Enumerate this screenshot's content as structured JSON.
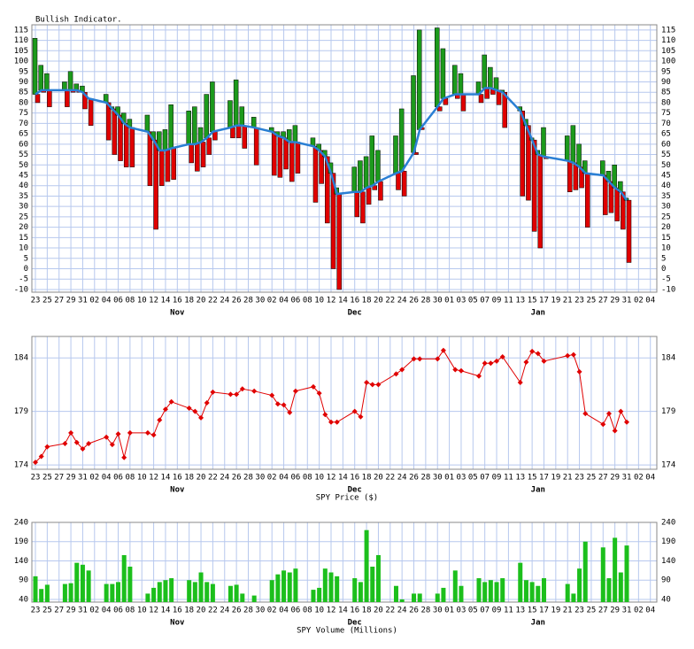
{
  "chart_data": [
    {
      "type": "indicator",
      "title": "Bullish Indicator.",
      "x": [
        "Oct 23",
        "Oct 24",
        "Oct 25",
        "Oct 28",
        "Oct 29",
        "Oct 30",
        "Oct 31",
        "Nov 1",
        "Nov 4",
        "Nov 5",
        "Nov 6",
        "Nov 7",
        "Nov 8",
        "Nov 11",
        "Nov 12",
        "Nov 13",
        "Nov 14",
        "Nov 15",
        "Nov 18",
        "Nov 19",
        "Nov 20",
        "Nov 21",
        "Nov 22",
        "Nov 25",
        "Nov 26",
        "Nov 27",
        "Nov 29",
        "Dec 2",
        "Dec 3",
        "Dec 4",
        "Dec 5",
        "Dec 6",
        "Dec 9",
        "Dec 10",
        "Dec 11",
        "Dec 12",
        "Dec 13",
        "Dec 16",
        "Dec 17",
        "Dec 18",
        "Dec 19",
        "Dec 20",
        "Dec 23",
        "Dec 24",
        "Dec 26",
        "Dec 27",
        "Dec 30",
        "Dec 31",
        "Jan 2",
        "Jan 3",
        "Jan 6",
        "Jan 7",
        "Jan 8",
        "Jan 9",
        "Jan 10",
        "Jan 13",
        "Jan 14",
        "Jan 15",
        "Jan 16",
        "Jan 17",
        "Jan 21",
        "Jan 22",
        "Jan 23",
        "Jan 24",
        "Jan 27",
        "Jan 28",
        "Jan 29",
        "Jan 30",
        "Jan 31"
      ],
      "xticks": [
        {
          "value": "Oct 23",
          "label": "23"
        },
        {
          "value": "Oct 25",
          "label": "25"
        },
        {
          "value": "Oct 27",
          "label": "27"
        },
        {
          "value": "Oct 29",
          "label": "29"
        },
        {
          "value": "Oct 31",
          "label": "31"
        },
        {
          "value": "Nov 2",
          "label": "02"
        },
        {
          "value": "Nov 4",
          "label": "04"
        },
        {
          "value": "Nov 6",
          "label": "06"
        },
        {
          "value": "Nov 8",
          "label": "08"
        },
        {
          "value": "Nov 10",
          "label": "10"
        },
        {
          "value": "Nov 12",
          "label": "12"
        },
        {
          "value": "Nov 14",
          "label": "14"
        },
        {
          "value": "Nov 16",
          "label": "16"
        },
        {
          "value": "Nov 18",
          "label": "18"
        },
        {
          "value": "Nov 20",
          "label": "20"
        },
        {
          "value": "Nov 22",
          "label": "22"
        },
        {
          "value": "Nov 24",
          "label": "24"
        },
        {
          "value": "Nov 26",
          "label": "26"
        },
        {
          "value": "Nov 28",
          "label": "28"
        },
        {
          "value": "Nov 30",
          "label": "30"
        },
        {
          "value": "Dec 2",
          "label": "02"
        },
        {
          "value": "Dec 4",
          "label": "04"
        },
        {
          "value": "Dec 6",
          "label": "06"
        },
        {
          "value": "Dec 8",
          "label": "08"
        },
        {
          "value": "Dec 10",
          "label": "10"
        },
        {
          "value": "Dec 12",
          "label": "12"
        },
        {
          "value": "Dec 14",
          "label": "14"
        },
        {
          "value": "Dec 16",
          "label": "16"
        },
        {
          "value": "Dec 18",
          "label": "18"
        },
        {
          "value": "Dec 20",
          "label": "20"
        },
        {
          "value": "Dec 22",
          "label": "22"
        },
        {
          "value": "Dec 24",
          "label": "24"
        },
        {
          "value": "Dec 26",
          "label": "26"
        },
        {
          "value": "Dec 28",
          "label": "28"
        },
        {
          "value": "Dec 30",
          "label": "30"
        },
        {
          "value": "Jan 1",
          "label": "01"
        },
        {
          "value": "Jan 3",
          "label": "03"
        },
        {
          "value": "Jan 5",
          "label": "05"
        },
        {
          "value": "Jan 7",
          "label": "07"
        },
        {
          "value": "Jan 9",
          "label": "09"
        },
        {
          "value": "Jan 11",
          "label": "11"
        },
        {
          "value": "Jan 13",
          "label": "13"
        },
        {
          "value": "Jan 15",
          "label": "15"
        },
        {
          "value": "Jan 17",
          "label": "17"
        },
        {
          "value": "Jan 19",
          "label": "19"
        },
        {
          "value": "Jan 21",
          "label": "21"
        },
        {
          "value": "Jan 23",
          "label": "23"
        },
        {
          "value": "Jan 25",
          "label": "25"
        },
        {
          "value": "Jan 27",
          "label": "27"
        },
        {
          "value": "Jan 29",
          "label": "29"
        },
        {
          "value": "Jan 31",
          "label": "31"
        },
        {
          "value": "Feb 2",
          "label": "02"
        },
        {
          "value": "Feb 4",
          "label": "04"
        }
      ],
      "months": [
        "Nov",
        "Dec",
        "Jan"
      ],
      "high": [
        111,
        98,
        94,
        90,
        95,
        89,
        88,
        82,
        84,
        78,
        78,
        75,
        72,
        74,
        66,
        66,
        67,
        79,
        76,
        78,
        68,
        84,
        90,
        81,
        91,
        78,
        73,
        68,
        66,
        66,
        67,
        69,
        63,
        60,
        57,
        51,
        39,
        49,
        52,
        54,
        64,
        57,
        64,
        77,
        93,
        115,
        116,
        106,
        98,
        94,
        90,
        103,
        97,
        92,
        86,
        78,
        72,
        63,
        57,
        68,
        64,
        69,
        60,
        52,
        52,
        47,
        50,
        42,
        34
      ],
      "low": [
        80,
        85,
        78,
        78,
        85,
        85,
        77,
        69,
        62,
        55,
        52,
        49,
        49,
        40,
        19,
        40,
        42,
        43,
        51,
        47,
        49,
        55,
        62,
        63,
        63,
        58,
        50,
        45,
        44,
        48,
        42,
        46,
        32,
        41,
        22,
        0,
        -10,
        25,
        22,
        31,
        38,
        33,
        38,
        35,
        55,
        68,
        76,
        79,
        82,
        76,
        80,
        82,
        84,
        79,
        68,
        35,
        33,
        18,
        10,
        53,
        37,
        38,
        39,
        20,
        26,
        27,
        23,
        19,
        3
      ],
      "average": [
        84,
        86,
        86,
        86,
        86,
        86,
        85,
        82,
        80,
        77,
        74,
        70,
        68,
        66,
        62,
        57,
        57,
        58,
        60,
        60,
        61,
        63,
        66,
        68,
        69,
        69,
        68,
        66,
        64,
        63,
        61,
        61,
        59,
        57,
        54,
        46,
        36,
        37,
        37,
        39,
        40,
        42,
        46,
        47,
        56,
        67,
        78,
        82,
        84,
        84,
        84,
        87,
        87,
        86,
        85,
        76,
        69,
        62,
        55,
        54,
        52,
        51,
        49,
        46,
        45,
        42,
        39,
        37,
        33
      ],
      "up_color": "#1c9a1c",
      "down_color": "#e00000",
      "line_color": "#2a7fd4",
      "ylim": [
        -11.3,
        117.5
      ],
      "yticks": [
        -10,
        -5,
        0,
        5,
        10,
        15,
        20,
        25,
        30,
        35,
        40,
        45,
        50,
        55,
        60,
        65,
        70,
        75,
        80,
        85,
        90,
        95,
        100,
        105,
        110,
        115
      ]
    },
    {
      "type": "line",
      "xlabel": "SPY Price ($)",
      "color": "#e00000",
      "values": [
        174.25,
        174.8,
        175.7,
        176.0,
        177.0,
        176.1,
        175.5,
        176.0,
        176.6,
        175.9,
        176.9,
        174.7,
        177.0,
        177.0,
        176.8,
        178.2,
        179.2,
        179.9,
        179.3,
        179.0,
        178.4,
        179.8,
        180.8,
        180.6,
        180.6,
        181.1,
        180.9,
        180.5,
        179.7,
        179.6,
        178.9,
        180.9,
        181.3,
        180.7,
        178.7,
        178.0,
        178.0,
        179.0,
        178.5,
        181.7,
        181.5,
        181.5,
        182.5,
        182.9,
        183.9,
        183.9,
        183.9,
        184.7,
        182.9,
        182.8,
        182.3,
        183.5,
        183.5,
        183.7,
        184.1,
        181.7,
        183.6,
        184.6,
        184.4,
        183.7,
        184.2,
        184.3,
        182.7,
        178.8,
        177.8,
        178.8,
        177.2,
        179.0,
        178.0
      ],
      "ylim": [
        173.6,
        186
      ],
      "yticks": [
        174,
        179,
        184
      ]
    },
    {
      "type": "bar",
      "xlabel": "SPY Volume (Millions)",
      "color": "#1cbf1c",
      "values": [
        100,
        67,
        78,
        80,
        82,
        135,
        130,
        115,
        80,
        80,
        85,
        155,
        125,
        55,
        70,
        85,
        90,
        95,
        90,
        85,
        110,
        85,
        80,
        75,
        78,
        55,
        50,
        90,
        105,
        115,
        110,
        120,
        65,
        70,
        120,
        110,
        100,
        95,
        85,
        220,
        125,
        155,
        75,
        40,
        55,
        55,
        55,
        70,
        115,
        75,
        95,
        85,
        90,
        85,
        95,
        135,
        90,
        85,
        75,
        95,
        80,
        55,
        120,
        190,
        175,
        95,
        200,
        110,
        180
      ],
      "ylim": [
        33,
        240
      ],
      "yticks": [
        40,
        90,
        140,
        190,
        240
      ]
    }
  ]
}
